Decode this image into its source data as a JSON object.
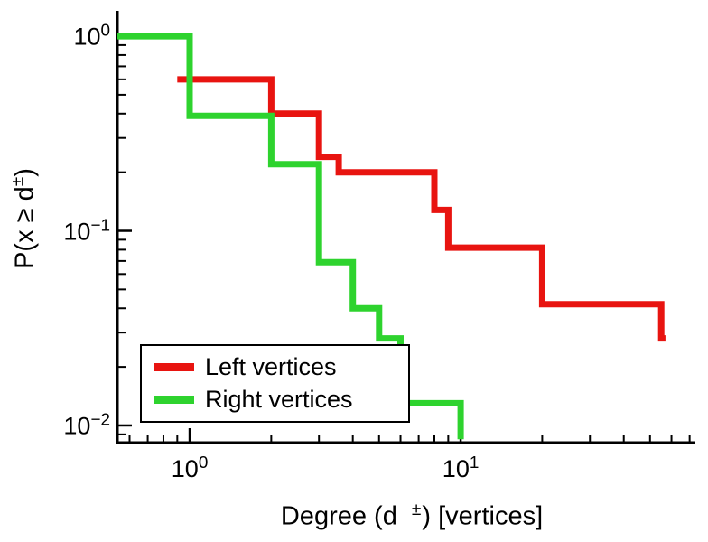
{
  "figure": {
    "background": "#ffffff",
    "axis_color": "#000000"
  },
  "chart_data": {
    "type": "line",
    "subtype": "step-ccdf-loglog",
    "title": "",
    "xlabel": {
      "pre": "Degree (d ",
      "sup": "±",
      "post": ") [vertices]"
    },
    "ylabel": {
      "pre": "P(x ≥ d",
      "sup": "±",
      "post": ")"
    },
    "x_scale": "log",
    "y_scale": "log",
    "xlim": [
      0.541,
      73.5
    ],
    "ylim": [
      0.00816,
      1.307
    ],
    "grid": false,
    "tick_base": "10",
    "x_ticks": [
      {
        "value": 1,
        "exp": "0"
      },
      {
        "value": 10,
        "exp": "1"
      }
    ],
    "y_ticks": [
      {
        "value": 1,
        "exp": "0"
      },
      {
        "value": 0.1,
        "exp": "−1"
      },
      {
        "value": 0.01,
        "exp": "−2"
      }
    ],
    "x_minor_ticks": [
      0.6,
      0.7,
      0.8,
      0.9,
      2,
      3,
      4,
      5,
      6,
      7,
      8,
      9,
      20,
      30,
      40,
      50,
      60,
      70
    ],
    "y_minor_ticks": [
      0.9,
      0.8,
      0.7,
      0.6,
      0.5,
      0.4,
      0.3,
      0.2,
      0.09,
      0.08,
      0.07,
      0.06,
      0.05,
      0.04,
      0.03,
      0.02,
      0.009
    ],
    "legend": {
      "position": "lower-left"
    },
    "series": [
      {
        "name": "Left vertices",
        "color": "#e81410",
        "steps": [
          [
            0.9,
            0.6
          ],
          [
            2,
            0.4
          ],
          [
            3,
            0.24
          ],
          [
            3.55,
            0.2
          ],
          [
            8,
            0.128
          ],
          [
            9,
            0.082
          ],
          [
            20,
            0.042
          ],
          [
            55,
            0.028
          ]
        ],
        "end_x": 57
      },
      {
        "name": "Right vertices",
        "color": "#2ed32e",
        "steps": [
          [
            0.541,
            1.0
          ],
          [
            1,
            0.39
          ],
          [
            2,
            0.22
          ],
          [
            3,
            0.069
          ],
          [
            4,
            0.04
          ],
          [
            5,
            0.028
          ],
          [
            6,
            0.013
          ]
        ],
        "end_x": 10,
        "end_y": 0.0085
      }
    ]
  }
}
